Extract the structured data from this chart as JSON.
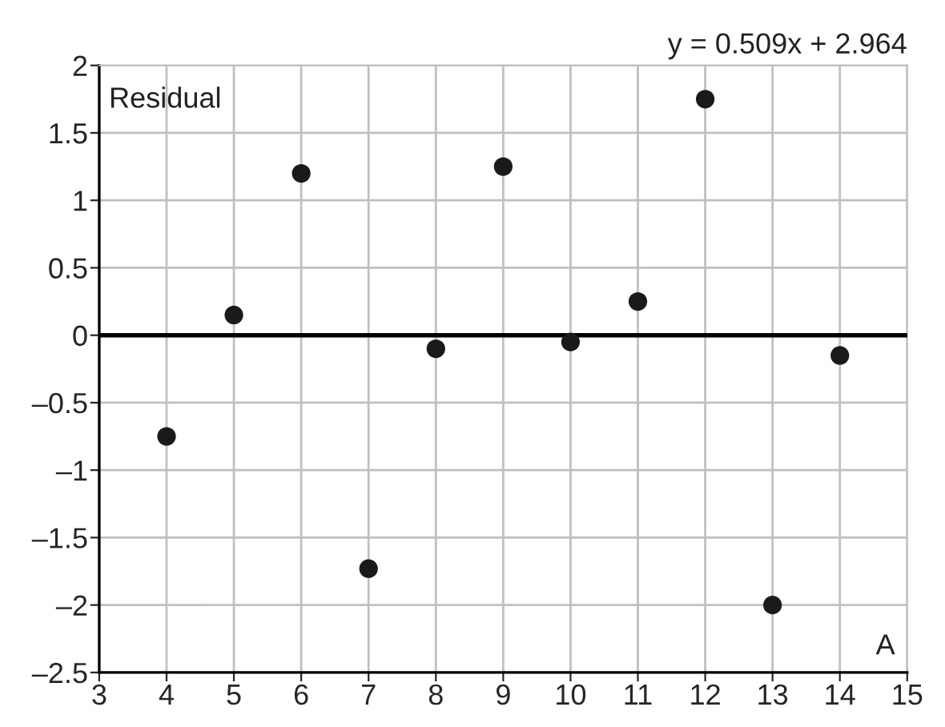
{
  "chart_data": {
    "type": "scatter",
    "x": [
      4,
      5,
      6,
      7,
      8,
      9,
      10,
      11,
      12,
      13,
      14
    ],
    "values": [
      -0.75,
      0.15,
      1.2,
      -1.73,
      -0.1,
      1.25,
      -0.05,
      0.25,
      1.75,
      -2.0,
      -0.15
    ],
    "color": "#1a1a1a",
    "marker": "circle",
    "xlim": [
      3,
      15
    ],
    "xticks": [
      3,
      4,
      5,
      6,
      7,
      8,
      9,
      10,
      11,
      12,
      13,
      14,
      15
    ],
    "ylim": [
      -2.5,
      2
    ],
    "yticks": [
      {
        "value": -2.5,
        "label": "–2.5"
      },
      {
        "value": -2,
        "label": "–2"
      },
      {
        "value": -1.5,
        "label": "–1.5"
      },
      {
        "value": -1,
        "label": "–1"
      },
      {
        "value": -0.5,
        "label": "–0.5"
      },
      0,
      0.5,
      1,
      1.5,
      2
    ],
    "ref_lines": [
      {
        "axis": "y",
        "value": 0,
        "color": "#000000"
      }
    ],
    "grid": true,
    "annotations": [
      "y = 0.509x + 2.964",
      "Residual",
      "A"
    ]
  }
}
